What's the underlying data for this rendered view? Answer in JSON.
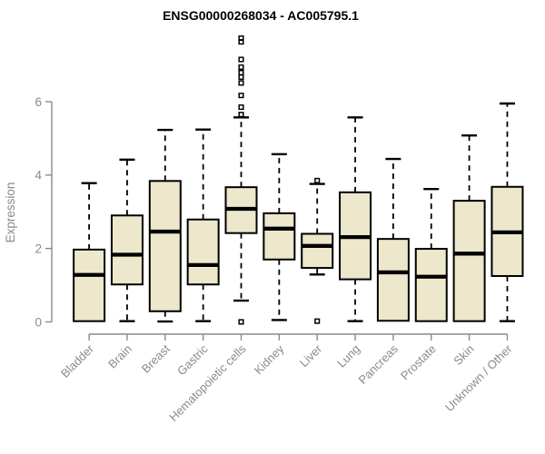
{
  "chart_data": {
    "type": "boxplot",
    "title": "ENSG00000268034 - AC005795.1",
    "ylabel": "Expression",
    "xlabel": "",
    "yticks": [
      0,
      2,
      4,
      6
    ],
    "ylim": [
      0,
      6
    ],
    "grid": false,
    "legend": "none",
    "categories": [
      "Bladder",
      "Brain",
      "Breast",
      "Gastric",
      "Hematopoietic cells",
      "Kidney",
      "Liver",
      "Lung",
      "Pancreas",
      "Prostate",
      "Skin",
      "Unknown / Other"
    ],
    "boxes": [
      {
        "category": "Bladder",
        "whisker_low": 0.02,
        "q1": 0.02,
        "median": 1.28,
        "q3": 1.97,
        "whisker_high": 3.78,
        "outliers": []
      },
      {
        "category": "Brain",
        "whisker_low": 0.02,
        "q1": 1.02,
        "median": 1.83,
        "q3": 2.9,
        "whisker_high": 4.42,
        "outliers": []
      },
      {
        "category": "Breast",
        "whisker_low": 0.01,
        "q1": 0.29,
        "median": 2.46,
        "q3": 3.84,
        "whisker_high": 5.23,
        "outliers": []
      },
      {
        "category": "Gastric",
        "whisker_low": 0.02,
        "q1": 1.02,
        "median": 1.55,
        "q3": 2.79,
        "whisker_high": 5.24,
        "outliers": []
      },
      {
        "category": "Hematopoietic cells",
        "whisker_low": 0.58,
        "q1": 2.42,
        "median": 3.08,
        "q3": 3.67,
        "whisker_high": 5.57,
        "outliers": [
          7.73,
          7.63,
          7.15,
          6.94,
          6.79,
          6.67,
          6.51,
          6.17,
          5.85,
          5.65,
          0.0
        ]
      },
      {
        "category": "Kidney",
        "whisker_low": 0.05,
        "q1": 1.7,
        "median": 2.54,
        "q3": 2.96,
        "whisker_high": 4.57,
        "outliers": []
      },
      {
        "category": "Liver",
        "whisker_low": 1.29,
        "q1": 1.47,
        "median": 2.07,
        "q3": 2.4,
        "whisker_high": 3.76,
        "outliers": [
          3.85,
          0.02
        ]
      },
      {
        "category": "Lung",
        "whisker_low": 0.02,
        "q1": 1.16,
        "median": 2.31,
        "q3": 3.53,
        "whisker_high": 5.57,
        "outliers": []
      },
      {
        "category": "Pancreas",
        "whisker_low": 0.03,
        "q1": 0.03,
        "median": 1.35,
        "q3": 2.26,
        "whisker_high": 4.44,
        "outliers": []
      },
      {
        "category": "Prostate",
        "whisker_low": 0.02,
        "q1": 0.02,
        "median": 1.23,
        "q3": 1.99,
        "whisker_high": 3.62,
        "outliers": []
      },
      {
        "category": "Skin",
        "whisker_low": 0.02,
        "q1": 0.02,
        "median": 1.86,
        "q3": 3.3,
        "whisker_high": 5.08,
        "outliers": []
      },
      {
        "category": "Unknown / Other",
        "whisker_low": 0.02,
        "q1": 1.25,
        "median": 2.44,
        "q3": 3.68,
        "whisker_high": 5.95,
        "outliers": []
      }
    ],
    "style": {
      "box_fill": "#ede7cb",
      "box_stroke": "#000000",
      "median_color": "#000000",
      "whisker_color": "#000000",
      "axis_color": "#8a8a8a",
      "tick_label_color": "#8a8a8a",
      "title_color": "#000000",
      "background": "#ffffff"
    }
  }
}
